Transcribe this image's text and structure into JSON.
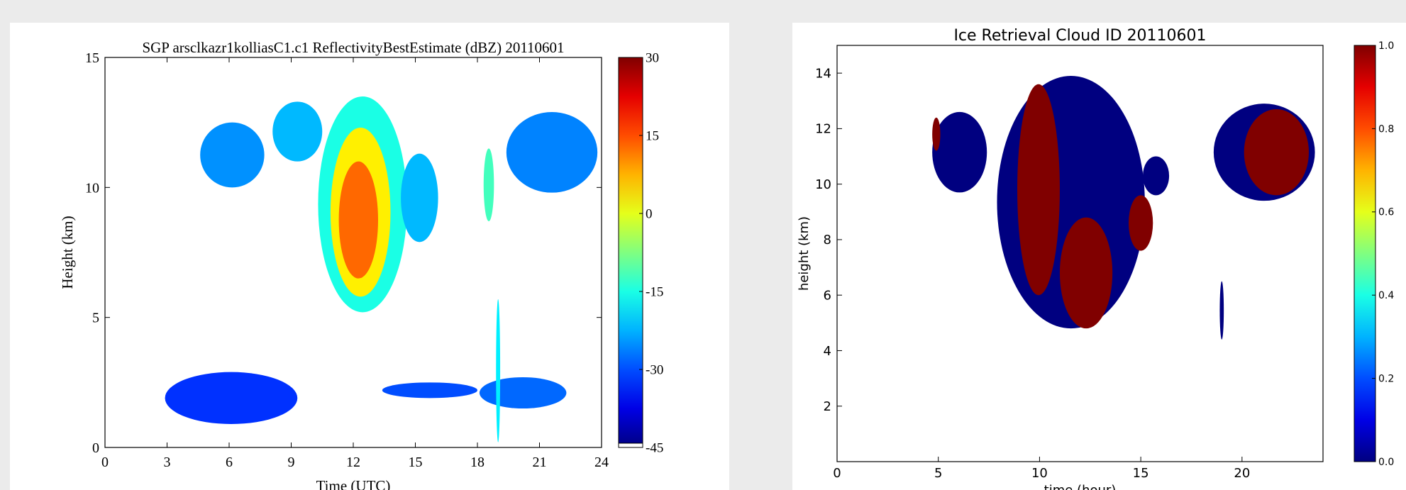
{
  "chart_data": [
    {
      "type": "heatmap",
      "title": "SGP arsclkazr1kolliasC1.c1 ReflectivityBestEstimate (dBZ) 20110601",
      "xlabel": "Time (UTC)",
      "ylabel": "Height (km)",
      "xlim": [
        0,
        24
      ],
      "ylim": [
        0,
        15
      ],
      "x_ticks": [
        0,
        3,
        6,
        9,
        12,
        15,
        18,
        21,
        24
      ],
      "y_ticks": [
        0,
        5,
        10,
        15
      ],
      "colorbar": {
        "range": [
          -45,
          30
        ],
        "ticks": [
          30,
          15,
          0,
          -15,
          -30,
          -45
        ],
        "colormap": "jet"
      },
      "regions": [
        {
          "x": [
            4.6,
            7.7
          ],
          "y": [
            10.0,
            12.5
          ],
          "value": -25
        },
        {
          "x": [
            8.1,
            10.5
          ],
          "y": [
            11.0,
            13.3
          ],
          "value": -22
        },
        {
          "x": [
            10.3,
            14.6
          ],
          "y": [
            5.2,
            13.5
          ],
          "value": -15
        },
        {
          "x": [
            10.9,
            13.8
          ],
          "y": [
            5.8,
            12.3
          ],
          "value": 3
        },
        {
          "x": [
            11.3,
            13.2
          ],
          "y": [
            6.5,
            11.0
          ],
          "value": 13
        },
        {
          "x": [
            14.3,
            16.1
          ],
          "y": [
            7.9,
            11.3
          ],
          "value": -22
        },
        {
          "x": [
            18.3,
            18.8
          ],
          "y": [
            8.7,
            11.5
          ],
          "value": -12
        },
        {
          "x": [
            19.4,
            23.8
          ],
          "y": [
            9.8,
            12.9
          ],
          "value": -26
        },
        {
          "x": [
            2.9,
            9.3
          ],
          "y": [
            0.9,
            2.9
          ],
          "value": -32
        },
        {
          "x": [
            13.4,
            18.0
          ],
          "y": [
            1.9,
            2.5
          ],
          "value": -30
        },
        {
          "x": [
            18.1,
            22.3
          ],
          "y": [
            1.5,
            2.7
          ],
          "value": -28
        },
        {
          "x": [
            18.9,
            19.1
          ],
          "y": [
            0.2,
            5.7
          ],
          "value": -18
        }
      ]
    },
    {
      "type": "heatmap",
      "title": "Ice Retrieval Cloud ID 20110601",
      "xlabel": "time (hour)",
      "ylabel": "height (km)",
      "xlim": [
        0,
        24
      ],
      "ylim": [
        0,
        15
      ],
      "x_ticks": [
        0,
        5,
        10,
        15,
        20
      ],
      "y_ticks": [
        2,
        4,
        6,
        8,
        10,
        12,
        14
      ],
      "colorbar": {
        "range": [
          0.0,
          1.0
        ],
        "ticks": [
          1.0,
          0.8,
          0.6,
          0.4,
          0.2,
          0.0
        ],
        "colormap": "jet"
      },
      "regions": [
        {
          "x": [
            4.7,
            7.4
          ],
          "y": [
            9.7,
            12.6
          ],
          "value": 0
        },
        {
          "x": [
            4.7,
            5.1
          ],
          "y": [
            11.2,
            12.4
          ],
          "value": 1
        },
        {
          "x": [
            7.9,
            15.2
          ],
          "y": [
            4.8,
            13.9
          ],
          "value": 0
        },
        {
          "x": [
            8.9,
            11.0
          ],
          "y": [
            6.0,
            13.6
          ],
          "value": 1
        },
        {
          "x": [
            11.0,
            13.6
          ],
          "y": [
            4.8,
            8.8
          ],
          "value": 1
        },
        {
          "x": [
            14.4,
            15.6
          ],
          "y": [
            7.6,
            9.6
          ],
          "value": 1
        },
        {
          "x": [
            15.1,
            16.4
          ],
          "y": [
            9.6,
            11.0
          ],
          "value": 0
        },
        {
          "x": [
            18.6,
            23.6
          ],
          "y": [
            9.4,
            12.9
          ],
          "value": 0
        },
        {
          "x": [
            20.1,
            23.3
          ],
          "y": [
            9.6,
            12.7
          ],
          "value": 1
        },
        {
          "x": [
            18.9,
            19.1
          ],
          "y": [
            4.4,
            6.5
          ],
          "value": 0
        }
      ]
    }
  ]
}
